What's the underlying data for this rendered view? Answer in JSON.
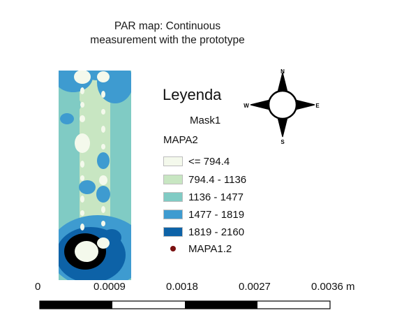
{
  "title_lines": [
    "PAR map: Continuous",
    "measurement with the prototype"
  ],
  "legend": {
    "heading": "Leyenda",
    "mask_layer": "Mask1",
    "raster_layer": "MAPA2",
    "classes": [
      {
        "label": "<= 794.4",
        "color": "#f4f9ec"
      },
      {
        "label": "794.4 - 1136",
        "color": "#c8e6c2"
      },
      {
        "label": "1136 - 1477",
        "color": "#80cbc4"
      },
      {
        "label": "1477 - 1819",
        "color": "#3e9bd0"
      },
      {
        "label": "1819 - 2160",
        "color": "#0d62a7"
      }
    ],
    "points": {
      "label": "MAPA1.2",
      "color": "#7a1010"
    }
  },
  "north_arrow": {
    "n": "N",
    "s": "S",
    "e": "E",
    "w": "W"
  },
  "scale_bar": {
    "ticks": [
      "0",
      "0.0009",
      "0.0018",
      "0.0027",
      "0.0036 m"
    ]
  }
}
